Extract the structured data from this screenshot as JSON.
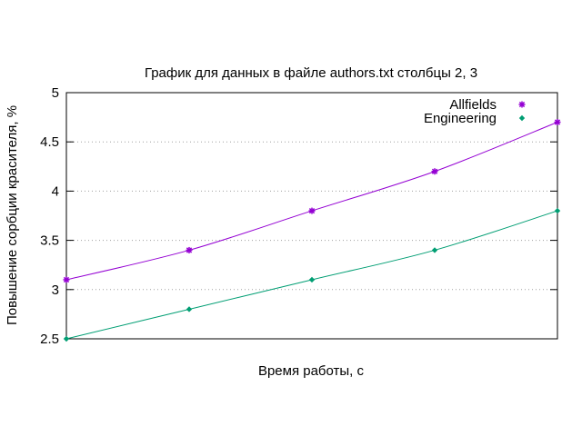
{
  "chart_data": {
    "type": "line",
    "title": "График для данных в файле authors.txt столбцы 2, 3",
    "xlabel": "Время работы, с",
    "ylabel": "Повышение сорбции красителя, %",
    "x": [
      0,
      1,
      2,
      3,
      4
    ],
    "xlim": [
      0,
      4
    ],
    "ylim": [
      2.5,
      5
    ],
    "yticks": [
      2.5,
      3,
      3.5,
      4,
      4.5,
      5
    ],
    "ytick_labels": [
      "2.5",
      "3",
      "3.5",
      "4",
      "4.5",
      "5"
    ],
    "grid": "horizontal dotted",
    "legend_position": "top-right",
    "series": [
      {
        "name": "Allfields",
        "values": [
          3.1,
          3.4,
          3.8,
          4.2,
          4.7
        ],
        "color": "#9400d3",
        "marker": "star"
      },
      {
        "name": "Engineering",
        "values": [
          2.5,
          2.8,
          3.1,
          3.4,
          3.8
        ],
        "color": "#009e73",
        "marker": "diamond"
      }
    ]
  }
}
